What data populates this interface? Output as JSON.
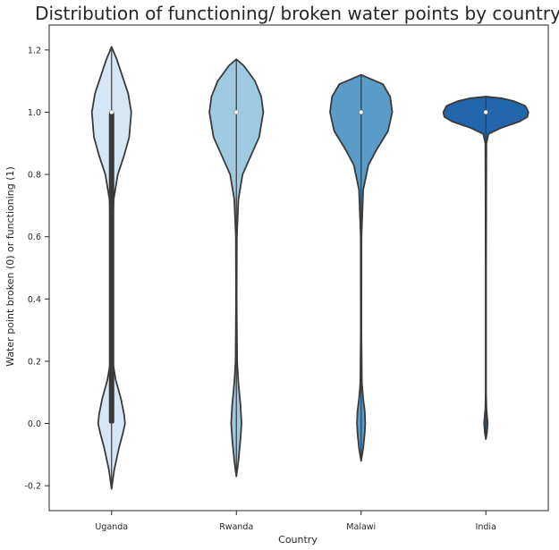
{
  "chart_data": {
    "type": "violin",
    "title": "Distribution of functioning/ broken water points by country",
    "xlabel": "Country",
    "ylabel": "Water point broken (0) or functioning (1)",
    "categories": [
      "Uganda",
      "Rwanda",
      "Malawi",
      "India"
    ],
    "ylim": [
      -0.28,
      1.28
    ],
    "yticks": [
      -0.2,
      0.0,
      0.2,
      0.4,
      0.6,
      0.8,
      1.0,
      1.2
    ],
    "ytick_labels": [
      "-0.2",
      "0.0",
      "0.2",
      "0.4",
      "0.6",
      "0.8",
      "1.0",
      "1.2"
    ],
    "grid": false,
    "violins": [
      {
        "category": "Uganda",
        "color": "#d6e6f4",
        "median": 1.0,
        "q1": 0.0,
        "q3": 1.0,
        "ymin": -0.21,
        "ymax": 1.21,
        "profile": [
          [
            -0.21,
            0.0
          ],
          [
            -0.15,
            0.05
          ],
          [
            -0.08,
            0.14
          ],
          [
            -0.03,
            0.22
          ],
          [
            0.0,
            0.26
          ],
          [
            0.03,
            0.24
          ],
          [
            0.08,
            0.18
          ],
          [
            0.14,
            0.08
          ],
          [
            0.2,
            0.02
          ],
          [
            0.4,
            0.006
          ],
          [
            0.6,
            0.012
          ],
          [
            0.72,
            0.04
          ],
          [
            0.8,
            0.12
          ],
          [
            0.86,
            0.24
          ],
          [
            0.92,
            0.34
          ],
          [
            1.0,
            0.38
          ],
          [
            1.06,
            0.32
          ],
          [
            1.12,
            0.2
          ],
          [
            1.17,
            0.1
          ],
          [
            1.21,
            0.0
          ]
        ]
      },
      {
        "category": "Rwanda",
        "color": "#9ecae1",
        "median": 1.0,
        "q1": 1.0,
        "q3": 1.0,
        "ymin": -0.17,
        "ymax": 1.17,
        "profile": [
          [
            -0.17,
            0.0
          ],
          [
            -0.12,
            0.04
          ],
          [
            -0.05,
            0.08
          ],
          [
            0.0,
            0.1
          ],
          [
            0.06,
            0.08
          ],
          [
            0.13,
            0.04
          ],
          [
            0.2,
            0.015
          ],
          [
            0.4,
            0.006
          ],
          [
            0.6,
            0.01
          ],
          [
            0.72,
            0.04
          ],
          [
            0.8,
            0.12
          ],
          [
            0.86,
            0.28
          ],
          [
            0.92,
            0.44
          ],
          [
            1.0,
            0.52
          ],
          [
            1.05,
            0.48
          ],
          [
            1.1,
            0.36
          ],
          [
            1.15,
            0.14
          ],
          [
            1.17,
            0.0
          ]
        ]
      },
      {
        "category": "Malawi",
        "color": "#5a9bc8",
        "median": 1.0,
        "q1": 1.0,
        "q3": 1.0,
        "ymin": -0.12,
        "ymax": 1.12,
        "profile": [
          [
            -0.12,
            0.0
          ],
          [
            -0.08,
            0.04
          ],
          [
            -0.03,
            0.07
          ],
          [
            0.0,
            0.08
          ],
          [
            0.04,
            0.07
          ],
          [
            0.08,
            0.04
          ],
          [
            0.13,
            0.015
          ],
          [
            0.3,
            0.006
          ],
          [
            0.6,
            0.008
          ],
          [
            0.75,
            0.04
          ],
          [
            0.83,
            0.14
          ],
          [
            0.88,
            0.3
          ],
          [
            0.94,
            0.52
          ],
          [
            1.0,
            0.6
          ],
          [
            1.05,
            0.56
          ],
          [
            1.09,
            0.42
          ],
          [
            1.12,
            0.0
          ]
        ]
      },
      {
        "category": "India",
        "color": "#2166ac",
        "median": 1.0,
        "q1": 1.0,
        "q3": 1.0,
        "ymin": -0.05,
        "ymax": 1.05,
        "profile": [
          [
            -0.05,
            0.0
          ],
          [
            -0.03,
            0.02
          ],
          [
            0.0,
            0.035
          ],
          [
            0.02,
            0.025
          ],
          [
            0.05,
            0.01
          ],
          [
            0.1,
            0.004
          ],
          [
            0.5,
            0.004
          ],
          [
            0.9,
            0.01
          ],
          [
            0.93,
            0.05
          ],
          [
            0.95,
            0.3
          ],
          [
            0.97,
            0.65
          ],
          [
            0.985,
            0.8
          ],
          [
            1.0,
            0.82
          ],
          [
            1.02,
            0.76
          ],
          [
            1.035,
            0.55
          ],
          [
            1.045,
            0.3
          ],
          [
            1.05,
            0.0
          ]
        ]
      }
    ]
  }
}
